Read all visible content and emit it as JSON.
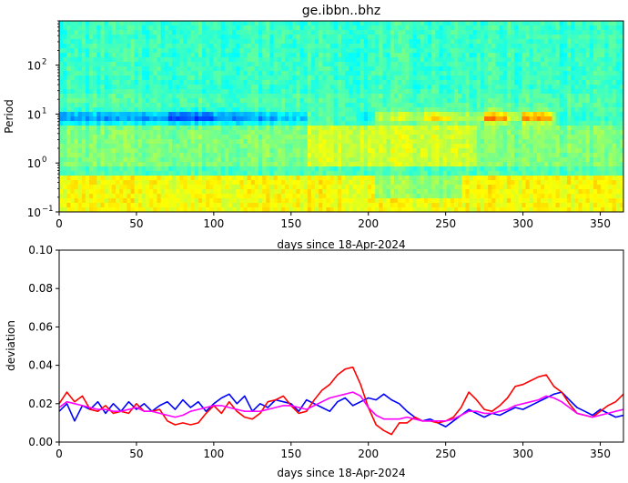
{
  "chart_data": [
    {
      "type": "heatmap",
      "title": "ge.ibbn..bhz",
      "xlabel": "days since 18-Apr-2024",
      "ylabel": "Period",
      "xlim": [
        0,
        365
      ],
      "ylim": [
        0.1,
        800
      ],
      "y_scale": "log",
      "x_ticks": [
        0,
        50,
        100,
        150,
        200,
        250,
        300,
        350
      ],
      "x_tick_labels": [
        "0",
        "50",
        "100",
        "150",
        "200",
        "250",
        "300",
        "350"
      ],
      "y_ticks": [
        0.1,
        1,
        10,
        100
      ],
      "y_tick_labels_base": [
        "10",
        "10",
        "10",
        "10"
      ],
      "y_tick_labels_exp": [
        "−1",
        "0",
        "1",
        "2"
      ],
      "colormap": "jet",
      "grid": false
    },
    {
      "type": "line",
      "xlabel": "days since 18-Apr-2024",
      "ylabel": "deviation",
      "xlim": [
        0,
        365
      ],
      "ylim": [
        0,
        0.1
      ],
      "x_ticks": [
        0,
        50,
        100,
        150,
        200,
        250,
        300,
        350
      ],
      "x_tick_labels": [
        "0",
        "50",
        "100",
        "150",
        "200",
        "250",
        "300",
        "350"
      ],
      "y_ticks": [
        0,
        0.02,
        0.04,
        0.06,
        0.08,
        0.1
      ],
      "y_tick_labels": [
        "0.00",
        "0.02",
        "0.04",
        "0.06",
        "0.08",
        "0.10"
      ],
      "grid": false,
      "series": [
        {
          "color": "#0000ff",
          "x": [
            0,
            5,
            10,
            15,
            20,
            25,
            30,
            35,
            40,
            45,
            50,
            55,
            60,
            65,
            70,
            75,
            80,
            85,
            90,
            95,
            100,
            105,
            110,
            115,
            120,
            125,
            130,
            135,
            140,
            145,
            150,
            155,
            160,
            165,
            170,
            175,
            180,
            185,
            190,
            195,
            200,
            205,
            210,
            215,
            220,
            225,
            230,
            235,
            240,
            245,
            250,
            255,
            260,
            265,
            270,
            275,
            280,
            285,
            290,
            295,
            300,
            305,
            310,
            315,
            320,
            325,
            330,
            335,
            340,
            345,
            350,
            355,
            360,
            365
          ],
          "y": [
            0.016,
            0.02,
            0.011,
            0.019,
            0.017,
            0.021,
            0.015,
            0.02,
            0.016,
            0.021,
            0.017,
            0.02,
            0.016,
            0.019,
            0.021,
            0.017,
            0.022,
            0.018,
            0.021,
            0.016,
            0.02,
            0.023,
            0.025,
            0.02,
            0.024,
            0.016,
            0.02,
            0.018,
            0.022,
            0.021,
            0.02,
            0.016,
            0.022,
            0.02,
            0.018,
            0.016,
            0.021,
            0.023,
            0.019,
            0.021,
            0.023,
            0.022,
            0.025,
            0.022,
            0.02,
            0.016,
            0.013,
            0.011,
            0.012,
            0.01,
            0.008,
            0.011,
            0.014,
            0.017,
            0.015,
            0.013,
            0.015,
            0.014,
            0.016,
            0.018,
            0.017,
            0.019,
            0.021,
            0.023,
            0.025,
            0.026,
            0.022,
            0.018,
            0.016,
            0.014,
            0.017,
            0.015,
            0.013,
            0.014
          ]
        },
        {
          "color": "#ff0000",
          "x": [
            0,
            5,
            10,
            15,
            20,
            25,
            30,
            35,
            40,
            45,
            50,
            55,
            60,
            65,
            70,
            75,
            80,
            85,
            90,
            95,
            100,
            105,
            110,
            115,
            120,
            125,
            130,
            135,
            140,
            145,
            150,
            155,
            160,
            165,
            170,
            175,
            180,
            185,
            190,
            195,
            200,
            205,
            210,
            215,
            220,
            225,
            230,
            235,
            240,
            245,
            250,
            255,
            260,
            265,
            270,
            275,
            280,
            285,
            290,
            295,
            300,
            305,
            310,
            315,
            320,
            325,
            330,
            335,
            340,
            345,
            350,
            355,
            360,
            365
          ],
          "y": [
            0.02,
            0.026,
            0.021,
            0.024,
            0.017,
            0.016,
            0.019,
            0.015,
            0.016,
            0.015,
            0.02,
            0.016,
            0.016,
            0.017,
            0.011,
            0.009,
            0.01,
            0.009,
            0.01,
            0.015,
            0.019,
            0.015,
            0.021,
            0.016,
            0.013,
            0.012,
            0.015,
            0.021,
            0.022,
            0.024,
            0.019,
            0.015,
            0.016,
            0.022,
            0.027,
            0.03,
            0.035,
            0.038,
            0.039,
            0.03,
            0.018,
            0.009,
            0.006,
            0.004,
            0.01,
            0.01,
            0.013,
            0.011,
            0.011,
            0.01,
            0.011,
            0.013,
            0.018,
            0.026,
            0.022,
            0.017,
            0.016,
            0.019,
            0.023,
            0.029,
            0.03,
            0.032,
            0.034,
            0.035,
            0.029,
            0.026,
            0.02,
            0.015,
            0.014,
            0.013,
            0.016,
            0.019,
            0.021,
            0.025
          ]
        },
        {
          "color": "#ff00ff",
          "x": [
            0,
            5,
            10,
            15,
            20,
            25,
            30,
            35,
            40,
            45,
            50,
            55,
            60,
            65,
            70,
            75,
            80,
            85,
            90,
            95,
            100,
            105,
            110,
            115,
            120,
            125,
            130,
            135,
            140,
            145,
            150,
            155,
            160,
            165,
            170,
            175,
            180,
            185,
            190,
            195,
            200,
            205,
            210,
            215,
            220,
            225,
            230,
            235,
            240,
            245,
            250,
            255,
            260,
            265,
            270,
            275,
            280,
            285,
            290,
            295,
            300,
            305,
            310,
            315,
            320,
            325,
            330,
            335,
            340,
            345,
            350,
            355,
            360,
            365
          ],
          "y": [
            0.018,
            0.021,
            0.02,
            0.019,
            0.018,
            0.017,
            0.017,
            0.016,
            0.016,
            0.017,
            0.018,
            0.016,
            0.016,
            0.015,
            0.014,
            0.013,
            0.014,
            0.016,
            0.017,
            0.018,
            0.019,
            0.019,
            0.018,
            0.017,
            0.016,
            0.016,
            0.016,
            0.017,
            0.018,
            0.019,
            0.019,
            0.018,
            0.017,
            0.019,
            0.021,
            0.023,
            0.024,
            0.025,
            0.026,
            0.024,
            0.018,
            0.014,
            0.012,
            0.012,
            0.012,
            0.013,
            0.012,
            0.011,
            0.011,
            0.011,
            0.011,
            0.012,
            0.014,
            0.016,
            0.016,
            0.015,
            0.015,
            0.016,
            0.017,
            0.019,
            0.02,
            0.021,
            0.022,
            0.024,
            0.023,
            0.021,
            0.018,
            0.015,
            0.014,
            0.013,
            0.014,
            0.015,
            0.016,
            0.017
          ]
        }
      ]
    }
  ]
}
